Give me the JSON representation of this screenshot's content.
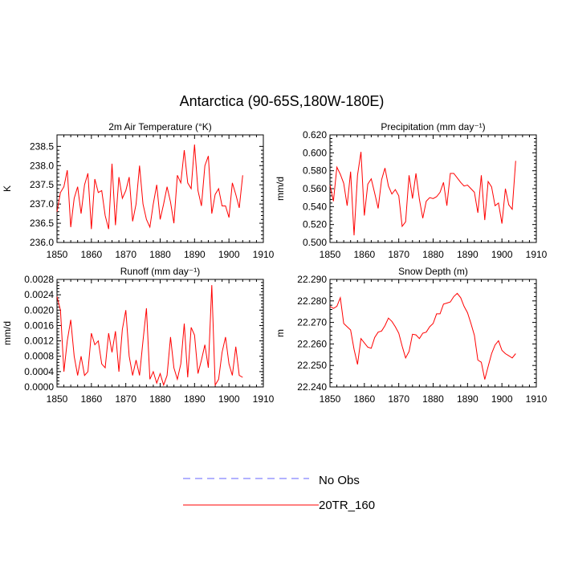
{
  "figure": {
    "title": "Antarctica (90-65S,180W-180E)"
  },
  "legend": {
    "entries": [
      {
        "label": "No Obs",
        "color": "#6666ff",
        "dashed": true
      },
      {
        "label": "20TR_160",
        "color": "#ff0000",
        "dashed": false
      }
    ]
  },
  "chart_data": [
    {
      "type": "line",
      "title": "2m Air Temperature (°K)",
      "ylabel": "K",
      "xlim": [
        1850,
        1910
      ],
      "ylim": [
        236.0,
        238.8
      ],
      "xticks": [
        1850,
        1860,
        1870,
        1880,
        1890,
        1900,
        1910
      ],
      "yticks": [
        "236.0",
        "236.5",
        "237.0",
        "237.5",
        "238.0",
        "238.5"
      ],
      "series": [
        {
          "name": "20TR_160",
          "color": "#ff0000",
          "x": [
            1850,
            1851,
            1852,
            1853,
            1854,
            1855,
            1856,
            1857,
            1858,
            1859,
            1860,
            1861,
            1862,
            1863,
            1864,
            1865,
            1866,
            1867,
            1868,
            1869,
            1870,
            1871,
            1872,
            1873,
            1874,
            1875,
            1876,
            1877,
            1878,
            1879,
            1880,
            1881,
            1882,
            1883,
            1884,
            1885,
            1886,
            1887,
            1888,
            1889,
            1890,
            1891,
            1892,
            1893,
            1894,
            1895,
            1896,
            1897,
            1898,
            1899,
            1900,
            1901,
            1902,
            1903,
            1904
          ],
          "values": [
            236.8,
            237.3,
            237.45,
            237.88,
            236.4,
            237.15,
            237.45,
            236.75,
            237.5,
            237.8,
            236.35,
            237.65,
            237.3,
            237.35,
            236.7,
            236.35,
            238.05,
            236.45,
            237.7,
            237.15,
            237.35,
            237.7,
            236.55,
            237.0,
            238.0,
            237.0,
            236.6,
            236.4,
            237.0,
            237.5,
            236.6,
            237.0,
            237.45,
            237.05,
            236.5,
            237.75,
            237.55,
            238.4,
            237.55,
            237.4,
            238.55,
            237.35,
            236.95,
            238.0,
            238.25,
            236.75,
            237.25,
            237.4,
            236.95,
            236.95,
            236.65,
            237.55,
            237.25,
            236.9,
            237.75
          ]
        }
      ]
    },
    {
      "type": "line",
      "title": "Precipitation (mm day⁻¹)",
      "ylabel": "mm/d",
      "xlim": [
        1850,
        1910
      ],
      "ylim": [
        0.5,
        0.62
      ],
      "xticks": [
        1850,
        1860,
        1870,
        1880,
        1890,
        1900,
        1910
      ],
      "yticks": [
        "0.500",
        "0.520",
        "0.540",
        "0.560",
        "0.580",
        "0.600",
        "0.620"
      ],
      "series": [
        {
          "name": "20TR_160",
          "color": "#ff0000",
          "x": [
            1850,
            1851,
            1852,
            1853,
            1854,
            1855,
            1856,
            1857,
            1858,
            1859,
            1860,
            1861,
            1862,
            1863,
            1864,
            1865,
            1866,
            1867,
            1868,
            1869,
            1870,
            1871,
            1872,
            1873,
            1874,
            1875,
            1876,
            1877,
            1878,
            1879,
            1880,
            1881,
            1882,
            1883,
            1884,
            1885,
            1886,
            1887,
            1888,
            1889,
            1890,
            1891,
            1892,
            1893,
            1894,
            1895,
            1896,
            1897,
            1898,
            1899,
            1900,
            1901,
            1902,
            1903,
            1904
          ],
          "values": [
            0.564,
            0.546,
            0.584,
            0.576,
            0.566,
            0.541,
            0.579,
            0.508,
            0.575,
            0.601,
            0.53,
            0.565,
            0.571,
            0.555,
            0.538,
            0.57,
            0.583,
            0.563,
            0.554,
            0.559,
            0.552,
            0.518,
            0.523,
            0.575,
            0.549,
            0.577,
            0.548,
            0.527,
            0.546,
            0.55,
            0.549,
            0.551,
            0.556,
            0.567,
            0.541,
            0.577,
            0.577,
            0.572,
            0.567,
            0.563,
            0.564,
            0.56,
            0.556,
            0.533,
            0.575,
            0.525,
            0.568,
            0.562,
            0.541,
            0.544,
            0.521,
            0.56,
            0.542,
            0.537,
            0.591
          ]
        }
      ]
    },
    {
      "type": "line",
      "title": "Runoff (mm day⁻¹)",
      "ylabel": "mm/d",
      "xlim": [
        1850,
        1910
      ],
      "ylim": [
        0,
        0.0028
      ],
      "xticks": [
        1850,
        1860,
        1870,
        1880,
        1890,
        1900,
        1910
      ],
      "yticks": [
        "0.0000",
        "0.0004",
        "0.0008",
        "0.0012",
        "0.0016",
        "0.0020",
        "0.0024",
        "0.0028"
      ],
      "series": [
        {
          "name": "20TR_160",
          "color": "#ff0000",
          "x": [
            1850,
            1851,
            1852,
            1853,
            1854,
            1855,
            1856,
            1857,
            1858,
            1859,
            1860,
            1861,
            1862,
            1863,
            1864,
            1865,
            1866,
            1867,
            1868,
            1869,
            1870,
            1871,
            1872,
            1873,
            1874,
            1875,
            1876,
            1877,
            1878,
            1879,
            1880,
            1881,
            1882,
            1883,
            1884,
            1885,
            1886,
            1887,
            1888,
            1889,
            1890,
            1891,
            1892,
            1893,
            1894,
            1895,
            1896,
            1897,
            1898,
            1899,
            1900,
            1901,
            1902,
            1903,
            1904
          ],
          "values": [
            0.00235,
            0.002,
            0.0004,
            0.0012,
            0.00175,
            0.0008,
            0.0003,
            0.0008,
            0.0003,
            0.0004,
            0.0014,
            0.0011,
            0.0012,
            0.0006,
            0.0005,
            0.0014,
            0.0009,
            0.00145,
            0.0004,
            0.0015,
            0.002,
            0.0008,
            0.0003,
            0.0007,
            0.0003,
            0.0012,
            0.00205,
            0.0002,
            0.0004,
            0.0001,
            0.00035,
            5e-05,
            0.0003,
            0.0013,
            0.0005,
            0.0002,
            0.0006,
            0.00165,
            0.00025,
            0.00155,
            0.00135,
            0.00035,
            0.0007,
            0.0011,
            0.0005,
            0.00265,
            5e-05,
            0.0002,
            0.0009,
            0.0013,
            0.0006,
            0.0003,
            0.00105,
            0.0003,
            0.00025
          ]
        }
      ]
    },
    {
      "type": "line",
      "title": "Snow Depth (m)",
      "ylabel": "m",
      "xlim": [
        1850,
        1910
      ],
      "ylim": [
        22.24,
        22.29
      ],
      "xticks": [
        1850,
        1860,
        1870,
        1880,
        1890,
        1900,
        1910
      ],
      "yticks": [
        "22.240",
        "22.250",
        "22.260",
        "22.270",
        "22.280",
        "22.290"
      ],
      "series": [
        {
          "name": "20TR_160",
          "color": "#ff0000",
          "x": [
            1850,
            1851,
            1852,
            1853,
            1854,
            1855,
            1856,
            1857,
            1858,
            1859,
            1860,
            1861,
            1862,
            1863,
            1864,
            1865,
            1866,
            1867,
            1868,
            1869,
            1870,
            1871,
            1872,
            1873,
            1874,
            1875,
            1876,
            1877,
            1878,
            1879,
            1880,
            1881,
            1882,
            1883,
            1884,
            1885,
            1886,
            1887,
            1888,
            1889,
            1890,
            1891,
            1892,
            1893,
            1894,
            1895,
            1896,
            1897,
            1898,
            1899,
            1900,
            1901,
            1902,
            1903,
            1904
          ],
          "values": [
            22.2775,
            22.2765,
            22.2775,
            22.2815,
            22.2695,
            22.268,
            22.2665,
            22.2575,
            22.2505,
            22.2625,
            22.2605,
            22.2585,
            22.258,
            22.263,
            22.2655,
            22.266,
            22.2685,
            22.272,
            22.2705,
            22.268,
            22.265,
            22.259,
            22.2535,
            22.2565,
            22.2645,
            22.2642,
            22.2625,
            22.265,
            22.2655,
            22.268,
            22.2695,
            22.274,
            22.274,
            22.2785,
            22.279,
            22.2795,
            22.282,
            22.2835,
            22.2815,
            22.2775,
            22.2745,
            22.2695,
            22.264,
            22.2525,
            22.2515,
            22.2435,
            22.2495,
            22.2555,
            22.2595,
            22.2615,
            22.257,
            22.2555,
            22.2545,
            22.2535,
            22.2555
          ]
        }
      ]
    }
  ]
}
